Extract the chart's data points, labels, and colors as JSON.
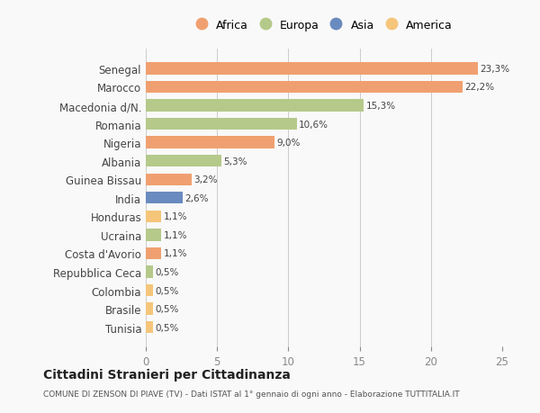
{
  "categories": [
    "Tunisia",
    "Brasile",
    "Colombia",
    "Repubblica Ceca",
    "Costa d'Avorio",
    "Ucraina",
    "Honduras",
    "India",
    "Guinea Bissau",
    "Albania",
    "Nigeria",
    "Romania",
    "Macedonia d/N.",
    "Marocco",
    "Senegal"
  ],
  "values": [
    0.5,
    0.5,
    0.5,
    0.5,
    1.1,
    1.1,
    1.1,
    2.6,
    3.2,
    5.3,
    9.0,
    10.6,
    15.3,
    22.2,
    23.3
  ],
  "colors": [
    "#f5c57a",
    "#f5c57a",
    "#f5c57a",
    "#b5c98a",
    "#f0a070",
    "#b5c98a",
    "#f5c57a",
    "#6a8bbf",
    "#f0a070",
    "#b5c98a",
    "#f0a070",
    "#b5c98a",
    "#b5c98a",
    "#f0a070",
    "#f0a070"
  ],
  "labels": [
    "0,5%",
    "0,5%",
    "0,5%",
    "0,5%",
    "1,1%",
    "1,1%",
    "1,1%",
    "2,6%",
    "3,2%",
    "5,3%",
    "9,0%",
    "10,6%",
    "15,3%",
    "22,2%",
    "23,3%"
  ],
  "legend": [
    {
      "label": "Africa",
      "color": "#f0a070"
    },
    {
      "label": "Europa",
      "color": "#b5c98a"
    },
    {
      "label": "Asia",
      "color": "#6a8bbf"
    },
    {
      "label": "America",
      "color": "#f5c57a"
    }
  ],
  "title": "Cittadini Stranieri per Cittadinanza",
  "subtitle": "COMUNE DI ZENSON DI PIAVE (TV) - Dati ISTAT al 1° gennaio di ogni anno - Elaborazione TUTTITALIA.IT",
  "xlim": [
    0,
    25
  ],
  "xticks": [
    0,
    5,
    10,
    15,
    20,
    25
  ],
  "background_color": "#f9f9f9",
  "bar_height": 0.65
}
